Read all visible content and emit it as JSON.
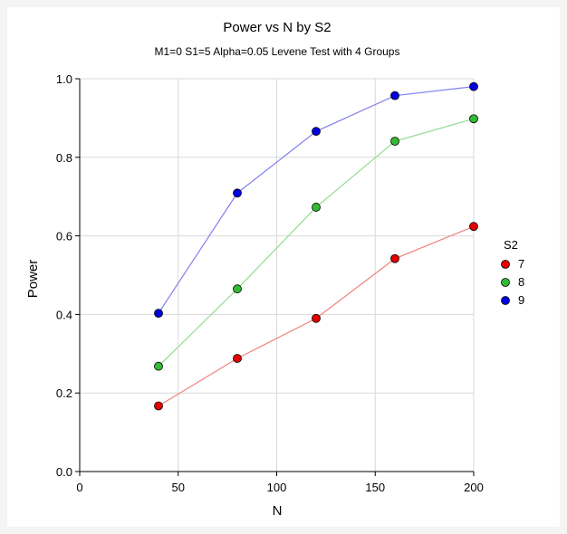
{
  "chart_data": {
    "type": "line",
    "title": "Power vs N by S2",
    "subtitle": "M1=0 S1=5 Alpha=0.05 Levene Test with 4 Groups",
    "xlabel": "N",
    "ylabel": "Power",
    "xlim": [
      0,
      200
    ],
    "ylim": [
      0.0,
      1.0
    ],
    "xticks": [
      "0",
      "50",
      "100",
      "150",
      "200"
    ],
    "yticks": [
      "0.0",
      "0.2",
      "0.4",
      "0.6",
      "0.8",
      "1.0"
    ],
    "grid": true,
    "legend_title": "S2",
    "legend_position": "right",
    "x": [
      40,
      80,
      120,
      160,
      200
    ],
    "series": [
      {
        "name": "7",
        "color": "#e60000",
        "line_color": "#f08080",
        "values": [
          0.167,
          0.288,
          0.39,
          0.542,
          0.624
        ]
      },
      {
        "name": "8",
        "color": "#33bb33",
        "line_color": "#90dd90",
        "values": [
          0.268,
          0.465,
          0.673,
          0.841,
          0.898
        ]
      },
      {
        "name": "9",
        "color": "#0000e0",
        "line_color": "#8080ee",
        "values": [
          0.403,
          0.709,
          0.866,
          0.957,
          0.98
        ]
      }
    ]
  }
}
